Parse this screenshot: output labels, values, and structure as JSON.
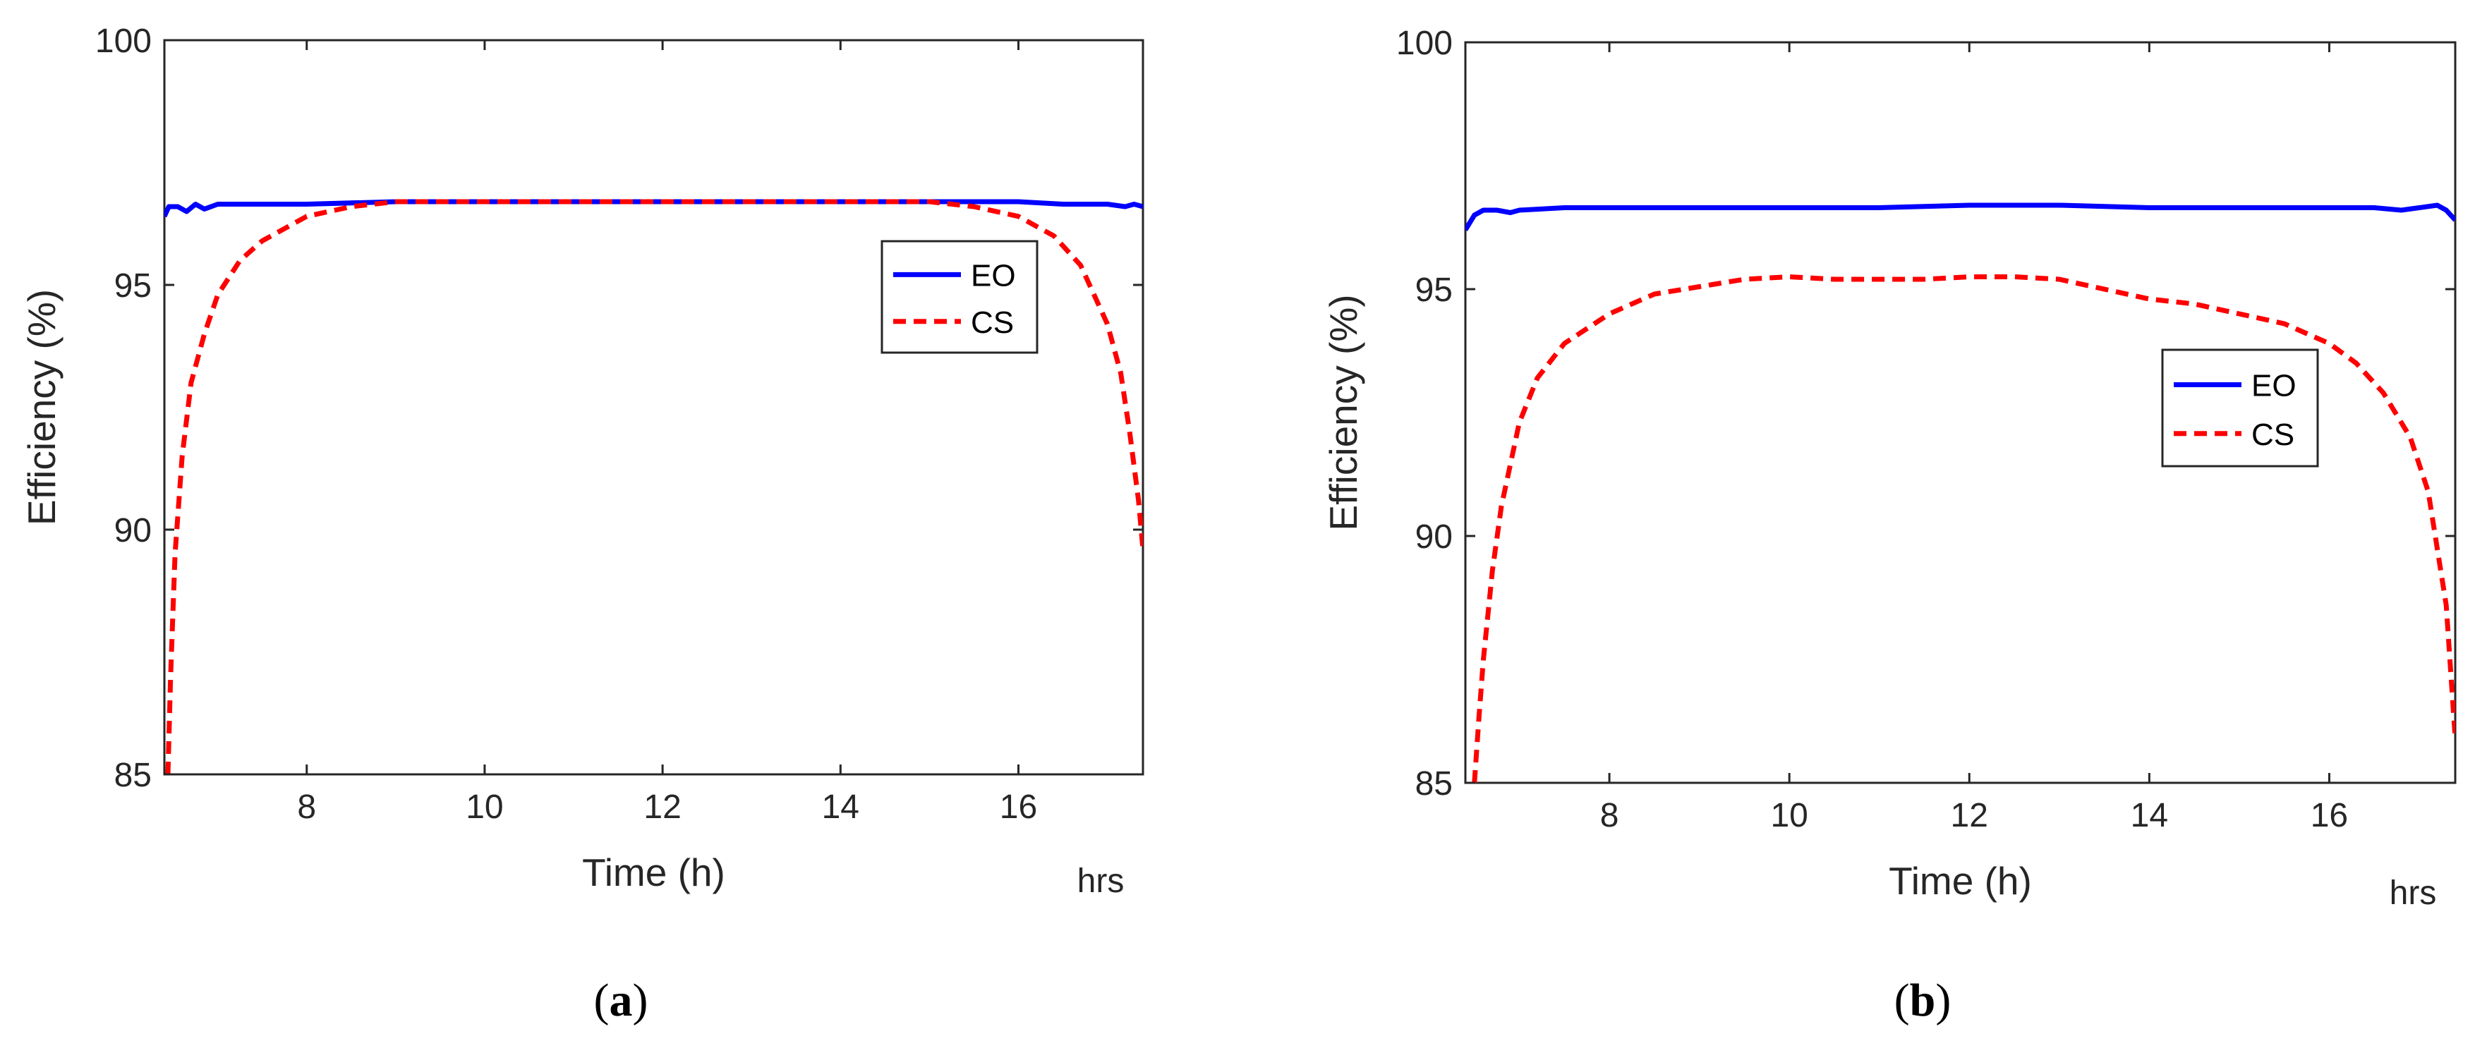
{
  "chart_data": [
    {
      "type": "line",
      "panel_label": "a",
      "xlabel": "Time (h)",
      "x_unit_label": "hrs",
      "ylabel": "Efficiency (%)",
      "xlim": [
        6.4,
        17.4
      ],
      "ylim": [
        85,
        100
      ],
      "x_ticks": [
        8,
        10,
        12,
        14,
        16
      ],
      "y_ticks": [
        85,
        90,
        95,
        100
      ],
      "grid": false,
      "legend_position": "right",
      "series": [
        {
          "name": "EO",
          "color": "#0000ff",
          "style": "solid",
          "x": [
            6.4,
            6.45,
            6.55,
            6.65,
            6.75,
            6.85,
            7.0,
            7.5,
            8.0,
            9.0,
            10.0,
            11.0,
            12.0,
            13.0,
            14.0,
            15.0,
            16.0,
            16.5,
            17.0,
            17.2,
            17.3,
            17.4
          ],
          "y": [
            96.4,
            96.6,
            96.6,
            96.5,
            96.65,
            96.55,
            96.65,
            96.65,
            96.65,
            96.7,
            96.7,
            96.7,
            96.7,
            96.7,
            96.7,
            96.7,
            96.7,
            96.65,
            96.65,
            96.6,
            96.65,
            96.6
          ]
        },
        {
          "name": "CS",
          "color": "#ff0000",
          "style": "dashed",
          "x": [
            6.44,
            6.47,
            6.52,
            6.6,
            6.7,
            6.85,
            7.0,
            7.25,
            7.5,
            8.0,
            8.5,
            9.0,
            10.0,
            11.0,
            12.0,
            13.0,
            14.0,
            15.0,
            15.5,
            16.0,
            16.4,
            16.7,
            17.0,
            17.15,
            17.25,
            17.35,
            17.4
          ],
          "y": [
            85.0,
            87.0,
            89.5,
            91.5,
            93.0,
            94.0,
            94.8,
            95.5,
            95.9,
            96.4,
            96.6,
            96.7,
            96.7,
            96.7,
            96.7,
            96.7,
            96.7,
            96.7,
            96.6,
            96.4,
            96.0,
            95.4,
            94.2,
            93.2,
            92.0,
            90.6,
            89.6
          ]
        }
      ]
    },
    {
      "type": "line",
      "panel_label": "b",
      "xlabel": "Time (h)",
      "x_unit_label": "hrs",
      "ylabel": "Efficiency (%)",
      "xlim": [
        6.4,
        17.4
      ],
      "ylim": [
        85,
        100
      ],
      "x_ticks": [
        8,
        10,
        12,
        14,
        16
      ],
      "y_ticks": [
        85,
        90,
        95,
        100
      ],
      "grid": false,
      "legend_position": "right",
      "series": [
        {
          "name": "EO",
          "color": "#0000ff",
          "style": "solid",
          "x": [
            6.4,
            6.5,
            6.6,
            6.75,
            6.9,
            7.0,
            7.5,
            8.0,
            9.0,
            10.0,
            11.0,
            12.0,
            13.0,
            14.0,
            15.0,
            16.0,
            16.5,
            16.8,
            17.0,
            17.2,
            17.3,
            17.4
          ],
          "y": [
            96.2,
            96.5,
            96.6,
            96.6,
            96.55,
            96.6,
            96.65,
            96.65,
            96.65,
            96.65,
            96.65,
            96.7,
            96.7,
            96.65,
            96.65,
            96.65,
            96.65,
            96.6,
            96.65,
            96.7,
            96.6,
            96.4
          ]
        },
        {
          "name": "CS",
          "color": "#ff0000",
          "style": "dashed",
          "x": [
            6.5,
            6.55,
            6.6,
            6.7,
            6.8,
            7.0,
            7.2,
            7.5,
            8.0,
            8.5,
            9.0,
            9.5,
            10.0,
            10.5,
            11.0,
            11.5,
            12.0,
            12.5,
            13.0,
            13.5,
            14.0,
            14.5,
            15.0,
            15.5,
            16.0,
            16.3,
            16.6,
            16.9,
            17.1,
            17.3,
            17.4
          ],
          "y": [
            85.0,
            86.3,
            87.5,
            89.3,
            90.6,
            92.3,
            93.2,
            93.9,
            94.5,
            94.9,
            95.05,
            95.2,
            95.25,
            95.2,
            95.2,
            95.2,
            95.25,
            95.25,
            95.2,
            95.0,
            94.8,
            94.7,
            94.5,
            94.3,
            93.9,
            93.5,
            92.9,
            92.0,
            90.9,
            88.6,
            85.9
          ]
        }
      ]
    }
  ]
}
